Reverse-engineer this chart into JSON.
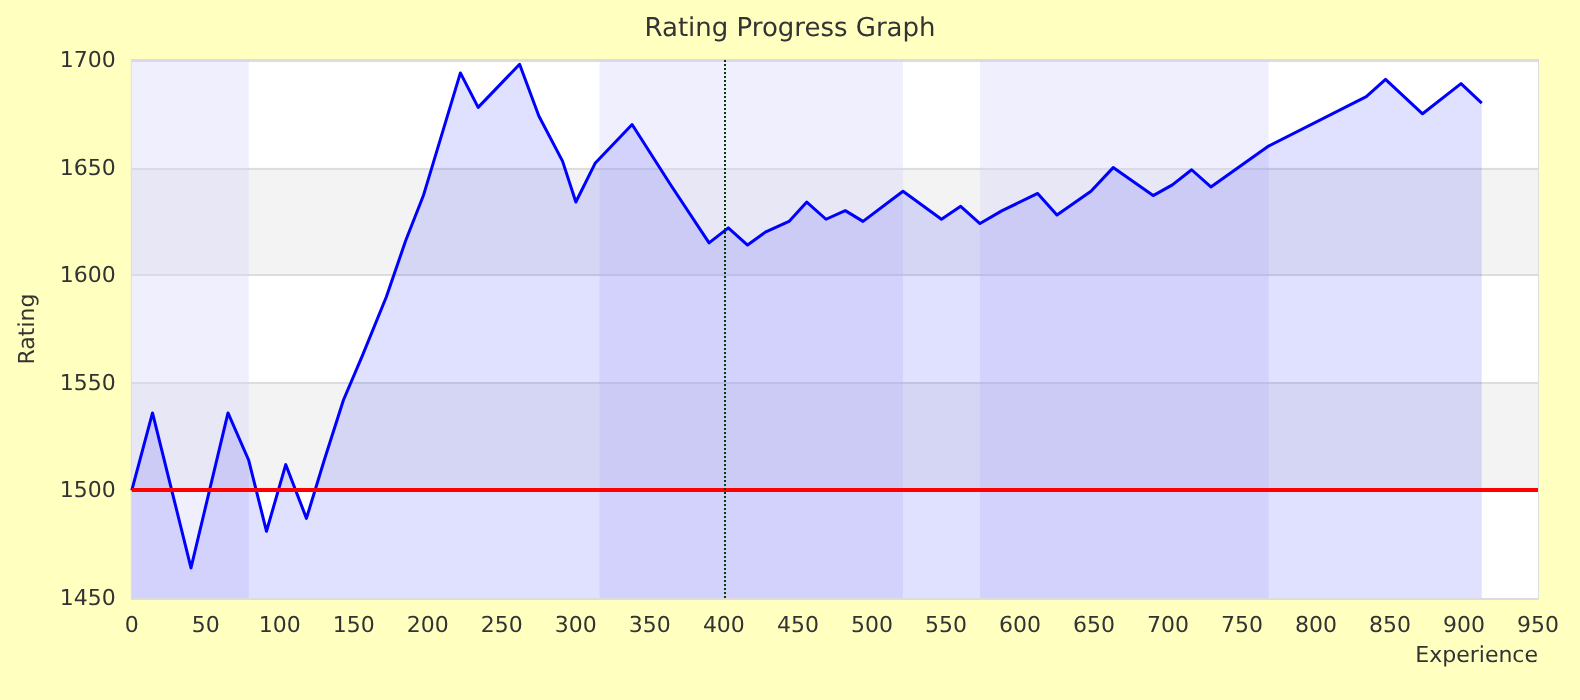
{
  "chart_data": {
    "type": "area",
    "title": "Rating Progress Graph",
    "xlabel": "Experience",
    "ylabel": "Rating",
    "x": [
      0,
      14,
      40,
      65,
      79,
      91,
      104,
      118,
      130,
      143,
      156,
      172,
      185,
      197,
      222,
      234,
      262,
      275,
      291,
      300,
      313,
      338,
      364,
      390,
      403,
      416,
      428,
      444,
      456,
      469,
      482,
      494,
      521,
      547,
      560,
      573,
      588,
      612,
      625,
      648,
      663,
      690,
      703,
      716,
      729,
      768,
      834,
      847,
      872,
      898,
      912
    ],
    "series": [
      {
        "color": "#0000ff",
        "values": [
          1500,
          1536,
          1464,
          1536,
          1514,
          1481,
          1512,
          1487,
          1514,
          1542,
          1563,
          1590,
          1616,
          1637,
          1694,
          1678,
          1698,
          1674,
          1653,
          1634,
          1652,
          1670,
          1642,
          1615,
          1622,
          1614,
          1620,
          1625,
          1634,
          1626,
          1630,
          1625,
          1639,
          1626,
          1632,
          1624,
          1630,
          1638,
          1628,
          1639,
          1650,
          1637,
          1642,
          1649,
          1641,
          1660,
          1683,
          1691,
          1675,
          1689,
          1680
        ]
      }
    ],
    "xlim": [
      0,
      950
    ],
    "xticks": [
      0,
      50,
      100,
      150,
      200,
      250,
      300,
      350,
      400,
      450,
      500,
      550,
      600,
      650,
      700,
      750,
      800,
      850,
      900,
      950
    ],
    "ylim": [
      1450,
      1700
    ],
    "yticks": [
      1450,
      1500,
      1550,
      1600,
      1650,
      1700
    ],
    "grid": "y",
    "marker": "none",
    "line_style": "solid",
    "ref_lines": [
      {
        "axis": "y",
        "value": 1500,
        "color": "#ff0000",
        "line_style": "solid"
      },
      {
        "axis": "x",
        "value": 400,
        "color": "#004000",
        "line_style": "dotted"
      }
    ],
    "bands": [
      {
        "axis": "x",
        "from": 0,
        "to": 79,
        "color": "#d0d0f9"
      },
      {
        "axis": "x",
        "from": 316,
        "to": 521,
        "color": "#d0d0f9"
      },
      {
        "axis": "x",
        "from": 573,
        "to": 768,
        "color": "#d0d0f9"
      }
    ]
  }
}
